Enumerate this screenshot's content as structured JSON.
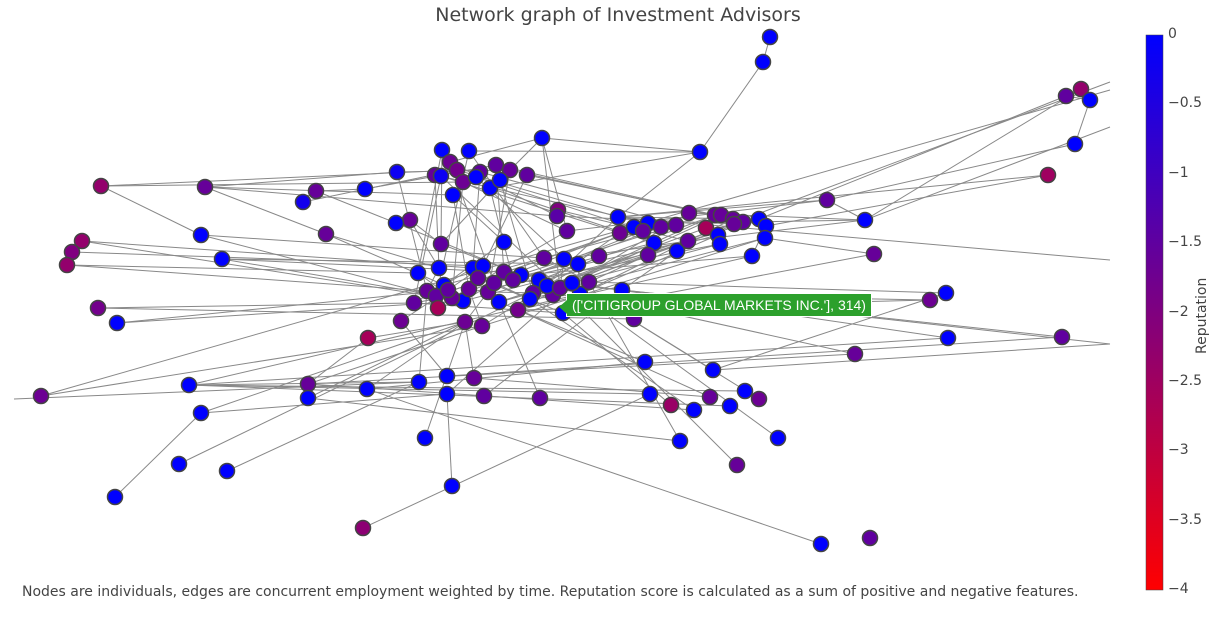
{
  "chart_data": {
    "type": "scatter",
    "title": "Network graph of Investment Advisors",
    "caption": "Nodes are individuals, edges are concurrent employment weighted by time. Reputation score is calculated as a sum of positive and negative features.",
    "colorbar": {
      "title": "Reputation",
      "ticks": [
        "0",
        "−0.5",
        "−1",
        "−1.5",
        "−2",
        "−2.5",
        "−3",
        "−3.5",
        "−4"
      ],
      "range": [
        -4,
        0
      ],
      "colors": {
        "high": "#0000ff",
        "low": "#ff0000"
      }
    },
    "hover": {
      "text": "(['CITIGROUP GLOBAL MARKETS INC.'], 314)",
      "color": "#2ca02c"
    },
    "edge_color": "#888888",
    "x_range": [
      0,
      1110
    ],
    "y_range": [
      0,
      560
    ],
    "nodes": [
      [
        770,
        37,
        0
      ],
      [
        763,
        62,
        0
      ],
      [
        542,
        138,
        0
      ],
      [
        700,
        152,
        0
      ],
      [
        442,
        150,
        0
      ],
      [
        469,
        151,
        0
      ],
      [
        1066,
        96,
        -1.5
      ],
      [
        1081,
        89,
        -2.3
      ],
      [
        1090,
        100,
        0
      ],
      [
        1075,
        144,
        0
      ],
      [
        1048,
        175,
        -2.5
      ],
      [
        101,
        186,
        -2.3
      ],
      [
        205,
        187,
        -1.6
      ],
      [
        316,
        191,
        -1.6
      ],
      [
        303,
        202,
        -0.3
      ],
      [
        365,
        189,
        0
      ],
      [
        397,
        172,
        -0.2
      ],
      [
        450,
        162,
        -1.7
      ],
      [
        457,
        170,
        -1.8
      ],
      [
        435,
        175,
        -1.6
      ],
      [
        480,
        172,
        -1.5
      ],
      [
        496,
        165,
        -1.5
      ],
      [
        510,
        170,
        -1.6
      ],
      [
        527,
        175,
        -1.5
      ],
      [
        490,
        188,
        0
      ],
      [
        500,
        180,
        0
      ],
      [
        453,
        195,
        0
      ],
      [
        463,
        182,
        -1.7
      ],
      [
        441,
        176,
        -0.2
      ],
      [
        476,
        177,
        0.0
      ],
      [
        827,
        200,
        -1.5
      ],
      [
        865,
        220,
        0
      ],
      [
        558,
        210,
        -2.0
      ],
      [
        557,
        216,
        -1.4
      ],
      [
        618,
        217,
        0
      ],
      [
        634,
        227,
        0
      ],
      [
        648,
        223,
        0
      ],
      [
        661,
        227,
        -1.5
      ],
      [
        676,
        225,
        -1.5
      ],
      [
        689,
        213,
        -1.6
      ],
      [
        715,
        215,
        -1.6
      ],
      [
        721,
        215,
        -1.6
      ],
      [
        733,
        219,
        -1.6
      ],
      [
        743,
        222,
        -1.5
      ],
      [
        759,
        219,
        0
      ],
      [
        766,
        226,
        0
      ],
      [
        410,
        220,
        -1.6
      ],
      [
        396,
        223,
        0
      ],
      [
        201,
        235,
        0
      ],
      [
        326,
        234,
        -1.6
      ],
      [
        82,
        241,
        -2.3
      ],
      [
        72,
        252,
        -2.0
      ],
      [
        67,
        265,
        -2.3
      ],
      [
        222,
        259,
        0
      ],
      [
        441,
        244,
        -1.5
      ],
      [
        504,
        242,
        0
      ],
      [
        567,
        231,
        -1.5
      ],
      [
        620,
        233,
        -1.7
      ],
      [
        643,
        231,
        -1.5
      ],
      [
        654,
        243,
        0
      ],
      [
        688,
        241,
        -1.5
      ],
      [
        706,
        228,
        -2.6
      ],
      [
        718,
        235,
        0
      ],
      [
        720,
        244,
        0
      ],
      [
        734,
        224,
        -1.6
      ],
      [
        765,
        238,
        0
      ],
      [
        752,
        256,
        0
      ],
      [
        874,
        254,
        -1.6
      ],
      [
        599,
        256,
        -1.5
      ],
      [
        648,
        255,
        -1.5
      ],
      [
        677,
        251,
        0
      ],
      [
        418,
        273,
        0
      ],
      [
        439,
        268,
        0
      ],
      [
        473,
        268,
        0
      ],
      [
        483,
        266,
        0
      ],
      [
        504,
        272,
        -1.5
      ],
      [
        521,
        275,
        0
      ],
      [
        539,
        280,
        0
      ],
      [
        564,
        259,
        0
      ],
      [
        578,
        264,
        0
      ],
      [
        544,
        258,
        -1.5
      ],
      [
        444,
        285,
        0
      ],
      [
        463,
        301,
        0
      ],
      [
        427,
        291,
        -1.6
      ],
      [
        452,
        298,
        -1.6
      ],
      [
        414,
        303,
        -1.5
      ],
      [
        436,
        296,
        -1.5
      ],
      [
        448,
        290,
        -1.5
      ],
      [
        488,
        292,
        -1.6
      ],
      [
        469,
        289,
        -1.6
      ],
      [
        494,
        283,
        -1.5
      ],
      [
        478,
        278,
        -1.5
      ],
      [
        513,
        280,
        -1.5
      ],
      [
        533,
        293,
        -1.5
      ],
      [
        553,
        295,
        -1.5
      ],
      [
        547,
        286,
        0
      ],
      [
        560,
        288,
        -1.5
      ],
      [
        580,
        294,
        0
      ],
      [
        589,
        282,
        -1.5
      ],
      [
        572,
        283,
        0
      ],
      [
        622,
        290,
        0
      ],
      [
        499,
        302,
        0
      ],
      [
        530,
        299,
        0
      ],
      [
        518,
        310,
        -1.8
      ],
      [
        563,
        313,
        0
      ],
      [
        438,
        308,
        -2.6
      ],
      [
        401,
        321,
        -1.7
      ],
      [
        465,
        322,
        -1.7
      ],
      [
        482,
        326,
        -1.6
      ],
      [
        634,
        319,
        -1.5
      ],
      [
        98,
        308,
        -1.8
      ],
      [
        117,
        323,
        0
      ],
      [
        368,
        338,
        -2.6
      ],
      [
        930,
        300,
        -1.7
      ],
      [
        946,
        293,
        0
      ],
      [
        948,
        338,
        0
      ],
      [
        1062,
        337,
        -1.5
      ],
      [
        855,
        354,
        -1.6
      ],
      [
        645,
        362,
        0
      ],
      [
        713,
        370,
        0
      ],
      [
        189,
        385,
        0
      ],
      [
        308,
        384,
        -1.6
      ],
      [
        308,
        398,
        0
      ],
      [
        367,
        389,
        0
      ],
      [
        419,
        382,
        0
      ],
      [
        447,
        376,
        0
      ],
      [
        474,
        378,
        -1.6
      ],
      [
        41,
        396,
        -1.7
      ],
      [
        201,
        413,
        0
      ],
      [
        447,
        394,
        0
      ],
      [
        484,
        396,
        -1.5
      ],
      [
        540,
        398,
        -1.5
      ],
      [
        650,
        394,
        0
      ],
      [
        671,
        405,
        -2.4
      ],
      [
        694,
        410,
        0
      ],
      [
        710,
        397,
        -1.6
      ],
      [
        730,
        406,
        0
      ],
      [
        745,
        391,
        0
      ],
      [
        759,
        399,
        -1.7
      ],
      [
        425,
        438,
        0
      ],
      [
        680,
        441,
        0
      ],
      [
        778,
        438,
        0
      ],
      [
        737,
        465,
        -1.6
      ],
      [
        179,
        464,
        0
      ],
      [
        227,
        471,
        0
      ],
      [
        452,
        486,
        0
      ],
      [
        115,
        497,
        0
      ],
      [
        363,
        528,
        -2.2
      ],
      [
        821,
        544,
        0
      ],
      [
        870,
        538,
        -1.5
      ]
    ],
    "edges": [
      [
        0,
        1
      ],
      [
        1,
        3
      ],
      [
        3,
        2
      ],
      [
        3,
        5
      ],
      [
        3,
        24
      ],
      [
        3,
        34
      ],
      [
        2,
        17
      ],
      [
        2,
        25
      ],
      [
        2,
        56
      ],
      [
        2,
        96
      ],
      [
        6,
        8
      ],
      [
        7,
        8
      ],
      [
        8,
        9
      ],
      [
        9,
        30
      ],
      [
        6,
        44
      ],
      [
        7,
        31
      ],
      [
        10,
        34
      ],
      [
        10,
        45
      ],
      [
        11,
        27
      ],
      [
        11,
        18
      ],
      [
        12,
        16
      ],
      [
        12,
        26
      ],
      [
        13,
        15
      ],
      [
        14,
        18
      ],
      [
        15,
        21
      ],
      [
        16,
        22
      ],
      [
        12,
        33
      ],
      [
        17,
        33
      ],
      [
        18,
        34
      ],
      [
        19,
        36
      ],
      [
        20,
        38
      ],
      [
        21,
        40
      ],
      [
        22,
        43
      ],
      [
        23,
        45
      ],
      [
        25,
        54
      ],
      [
        26,
        55
      ],
      [
        27,
        56
      ],
      [
        28,
        57
      ],
      [
        29,
        58
      ],
      [
        24,
        59
      ],
      [
        30,
        31
      ],
      [
        30,
        34
      ],
      [
        31,
        39
      ],
      [
        32,
        60
      ],
      [
        33,
        64
      ],
      [
        46,
        54
      ],
      [
        47,
        76
      ],
      [
        48,
        80
      ],
      [
        49,
        72
      ],
      [
        50,
        73
      ],
      [
        51,
        74
      ],
      [
        52,
        71
      ],
      [
        53,
        75
      ],
      [
        53,
        79
      ],
      [
        54,
        76
      ],
      [
        55,
        81
      ],
      [
        56,
        84
      ],
      [
        57,
        86
      ],
      [
        58,
        88
      ],
      [
        59,
        90
      ],
      [
        60,
        92
      ],
      [
        61,
        95
      ],
      [
        62,
        97
      ],
      [
        63,
        99
      ],
      [
        64,
        101
      ],
      [
        65,
        102
      ],
      [
        66,
        76
      ],
      [
        67,
        104
      ],
      [
        68,
        93
      ],
      [
        69,
        98
      ],
      [
        70,
        100
      ],
      [
        71,
        84
      ],
      [
        72,
        83
      ],
      [
        73,
        85
      ],
      [
        74,
        87
      ],
      [
        75,
        89
      ],
      [
        76,
        91
      ],
      [
        77,
        94
      ],
      [
        78,
        96
      ],
      [
        79,
        97
      ],
      [
        80,
        98
      ],
      [
        81,
        83
      ],
      [
        82,
        90
      ],
      [
        85,
        104
      ],
      [
        86,
        105
      ],
      [
        87,
        106
      ],
      [
        88,
        107
      ],
      [
        89,
        108
      ],
      [
        90,
        102
      ],
      [
        91,
        104
      ],
      [
        92,
        100
      ],
      [
        93,
        101
      ],
      [
        94,
        99
      ],
      [
        95,
        108
      ],
      [
        96,
        103
      ],
      [
        97,
        102
      ],
      [
        110,
        85
      ],
      [
        111,
        82
      ],
      [
        112,
        107
      ],
      [
        113,
        103
      ],
      [
        114,
        98
      ],
      [
        115,
        99
      ],
      [
        116,
        100
      ],
      [
        117,
        95
      ],
      [
        118,
        101
      ],
      [
        119,
        99
      ],
      [
        120,
        97
      ],
      [
        121,
        108
      ],
      [
        122,
        107
      ],
      [
        123,
        107
      ],
      [
        124,
        83
      ],
      [
        125,
        106
      ],
      [
        126,
        107
      ],
      [
        127,
        108
      ],
      [
        128,
        107
      ],
      [
        129,
        99
      ],
      [
        130,
        100
      ],
      [
        131,
        101
      ],
      [
        132,
        120
      ],
      [
        133,
        104
      ],
      [
        134,
        102
      ],
      [
        135,
        103
      ],
      [
        136,
        120
      ],
      [
        137,
        120
      ],
      [
        138,
        99
      ],
      [
        139,
        107
      ],
      [
        140,
        98
      ],
      [
        141,
        97
      ],
      [
        142,
        96
      ],
      [
        143,
        95
      ],
      [
        144,
        124
      ],
      [
        145,
        129
      ],
      [
        146,
        128
      ],
      [
        147,
        132
      ],
      [
        148,
        123
      ],
      [
        149,
        150
      ],
      [
        120,
        124
      ],
      [
        121,
        134
      ],
      [
        122,
        140
      ],
      [
        126,
        135
      ],
      [
        125,
        116
      ],
      [
        119,
        114
      ],
      [
        128,
        129
      ],
      [
        35,
        84
      ],
      [
        36,
        86
      ],
      [
        37,
        88
      ],
      [
        38,
        90
      ],
      [
        39,
        94
      ],
      [
        41,
        96
      ],
      [
        42,
        97
      ],
      [
        43,
        99
      ],
      [
        44,
        101
      ],
      [
        65,
        108
      ],
      [
        66,
        103
      ],
      [
        34,
        102
      ],
      [
        57,
        93
      ],
      [
        58,
        81
      ],
      [
        40,
        77
      ],
      [
        62,
        82
      ],
      [
        63,
        85
      ],
      [
        60,
        78
      ],
      [
        4,
        54
      ],
      [
        4,
        71
      ],
      [
        5,
        80
      ],
      [
        5,
        86
      ],
      [
        16,
        83
      ],
      [
        17,
        90
      ],
      [
        19,
        72
      ],
      [
        20,
        73
      ],
      [
        23,
        74
      ],
      [
        21,
        75
      ],
      [
        28,
        96
      ],
      [
        29,
        98
      ],
      [
        22,
        88
      ],
      [
        26,
        89
      ],
      [
        24,
        92
      ],
      [
        25,
        93
      ],
      [
        27,
        84
      ],
      [
        28,
        85
      ],
      [
        11,
        48
      ],
      [
        12,
        49
      ],
      [
        13,
        47
      ],
      [
        46,
        72
      ],
      [
        49,
        81
      ],
      [
        48,
        86
      ],
      [
        53,
        84
      ],
      [
        52,
        83
      ],
      [
        50,
        82
      ],
      [
        109,
        110
      ],
      [
        111,
        87
      ],
      [
        113,
        88
      ],
      [
        112,
        121
      ],
      [
        115,
        120
      ],
      [
        117,
        121
      ],
      [
        118,
        123
      ],
      [
        65,
        67
      ],
      [
        45,
        66
      ],
      [
        31,
        60
      ],
      [
        30,
        56
      ],
      [
        31,
        43
      ],
      [
        44,
        34
      ],
      [
        40,
        102
      ]
    ],
    "external_edges": [
      [
        0,
        0,
        170
      ],
      [
        0,
        0,
        237
      ],
      [
        0,
        0,
        232
      ],
      [
        1110,
        82,
        96
      ],
      [
        1110,
        90,
        127
      ],
      [
        1110,
        127,
        154
      ],
      [
        1110,
        260,
        34
      ],
      [
        1110,
        344,
        100
      ],
      [
        1110,
        344,
        119
      ],
      [
        0,
        399,
        124
      ],
      [
        1110,
        127,
        31
      ]
    ]
  }
}
